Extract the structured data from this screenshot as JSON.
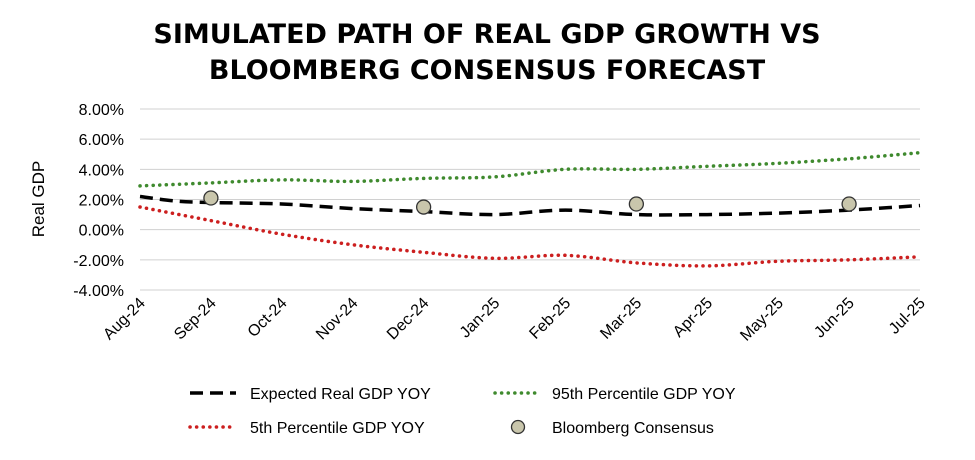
{
  "chart_data": {
    "type": "line",
    "title_line1": "SIMULATED PATH OF REAL GDP GROWTH VS",
    "title_line2": "BLOOMBERG CONSENSUS FORECAST",
    "ylabel": "Real GDP",
    "xlabel": "",
    "ylim": [
      -4,
      8
    ],
    "yticks": [
      8,
      6,
      4,
      2,
      0,
      -2,
      -4
    ],
    "ytick_labels": [
      "8.00%",
      "6.00%",
      "4.00%",
      "2.00%",
      "0.00%",
      "-2.00%",
      "-4.00%"
    ],
    "categories": [
      "Aug-24",
      "Sep-24",
      "Oct-24",
      "Nov-24",
      "Dec-24",
      "Jan-25",
      "Feb-25",
      "Mar-25",
      "Apr-25",
      "May-25",
      "Jun-25",
      "Jul-25"
    ],
    "grid": true,
    "legend_position": "bottom",
    "series": [
      {
        "name": "Expected Real GDP YOY",
        "style": "dashed",
        "color": "#000000",
        "x": [
          0,
          0.5,
          1,
          2,
          3,
          4,
          5,
          6,
          7,
          8,
          9,
          10,
          11
        ],
        "values": [
          2.2,
          1.9,
          1.8,
          1.7,
          1.4,
          1.2,
          1.0,
          1.3,
          1.0,
          1.0,
          1.1,
          1.3,
          1.6
        ]
      },
      {
        "name": "95th Percentile GDP YOY",
        "style": "dotted",
        "color": "#3f8a2e",
        "x": [
          0,
          1,
          2,
          3,
          4,
          5,
          6,
          7,
          8,
          9,
          10,
          11
        ],
        "values": [
          2.9,
          3.1,
          3.3,
          3.2,
          3.4,
          3.5,
          4.0,
          4.0,
          4.2,
          4.4,
          4.7,
          5.1
        ]
      },
      {
        "name": "5th Percentile GDP YOY",
        "style": "dotted",
        "color": "#cc1f1f",
        "x": [
          0,
          1,
          2,
          3,
          4,
          5,
          6,
          7,
          8,
          9,
          10,
          11
        ],
        "values": [
          1.5,
          0.6,
          -0.3,
          -1.0,
          -1.5,
          -1.9,
          -1.7,
          -2.2,
          -2.4,
          -2.1,
          -2.0,
          -1.8
        ]
      },
      {
        "name": "Bloomberg Consensus",
        "style": "markers",
        "color": "#c9c6ac",
        "x": [
          1,
          4,
          7,
          10
        ],
        "values": [
          2.1,
          1.5,
          1.7,
          1.7
        ]
      }
    ]
  }
}
